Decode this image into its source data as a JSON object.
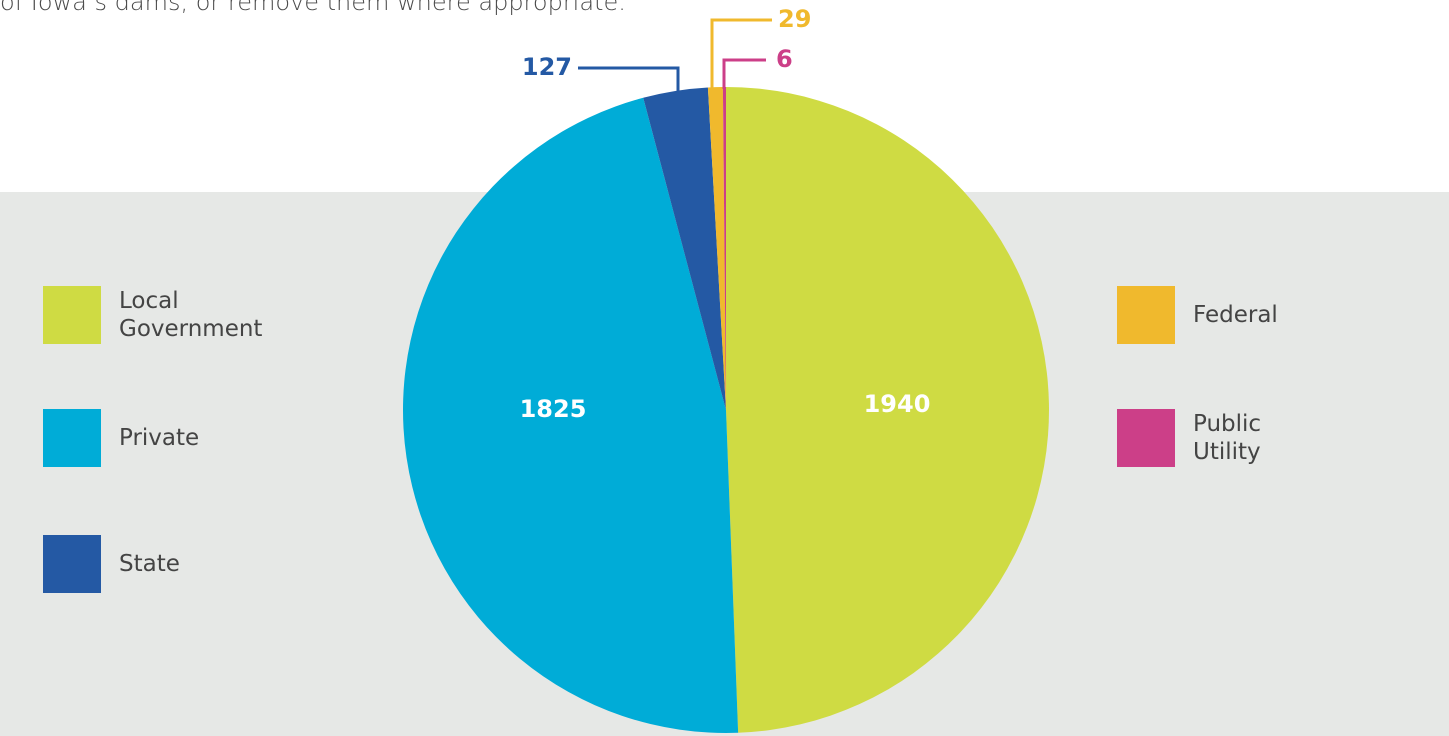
{
  "chart_data": {
    "type": "pie",
    "subtitle": "of Iowa’s dams, or remove them where appropriate.",
    "categories": [
      "Local Government",
      "Private",
      "State",
      "Federal",
      "Public Utility"
    ],
    "values": [
      1940,
      1825,
      127,
      29,
      6
    ],
    "colors": [
      "#cfdb43",
      "#00acd7",
      "#2459a4",
      "#f0b92d",
      "#cc3f88"
    ],
    "legend": "split-left-right"
  }
}
